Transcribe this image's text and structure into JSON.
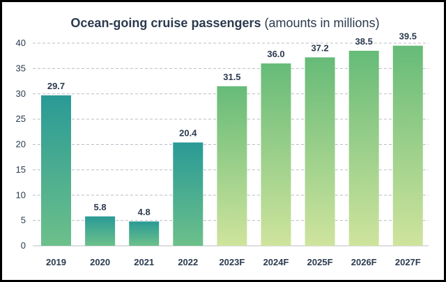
{
  "chart_data": {
    "type": "bar",
    "title": "Ocean-going cruise passengers",
    "subtitle": "(amounts in millions)",
    "xlabel": "",
    "ylabel": "",
    "categories": [
      "2019",
      "2020",
      "2021",
      "2022",
      "2023F",
      "2024F",
      "2025F",
      "2026F",
      "2027F"
    ],
    "values": [
      29.7,
      5.8,
      4.8,
      20.4,
      31.5,
      36.0,
      37.2,
      38.5,
      39.5
    ],
    "value_labels": [
      "29.7",
      "5.8",
      "4.8",
      "20.4",
      "31.5",
      "36.0",
      "37.2",
      "38.5",
      "39.5"
    ],
    "forecast": [
      false,
      false,
      false,
      false,
      true,
      true,
      true,
      true,
      true
    ],
    "ylim": [
      0,
      40
    ],
    "yticks": [
      0,
      5,
      10,
      15,
      20,
      25,
      30,
      35,
      40
    ],
    "grid": "horizontal-dashed",
    "legend": "none",
    "colors": {
      "actual_top": "#2a9a96",
      "actual_bottom": "#6cc08a",
      "forecast_top": "#66bb78",
      "forecast_bottom": "#cfe49d",
      "text": "#2b3a4e",
      "grid": "#b8bec6"
    }
  }
}
